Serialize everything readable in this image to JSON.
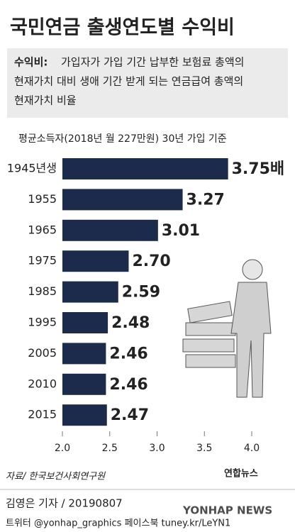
{
  "chart_data": {
    "type": "bar",
    "orientation": "horizontal",
    "title": "국민연금 출생연도별 수익비",
    "definition_label": "수익비:",
    "definition_lines": [
      "가입자가 가입 기간 납부한 보험료 총액의",
      "현재가치 대비 생애 기간 받게 되는 연금급여 총액의",
      "현재가치 비율"
    ],
    "subtitle": "평균소득자(2018년 월 227만원) 30년 가입 기준",
    "categories": [
      "1945년생",
      "1955",
      "1965",
      "1975",
      "1985",
      "1995",
      "2005",
      "2010",
      "2015"
    ],
    "values": [
      3.75,
      3.27,
      3.01,
      2.7,
      2.59,
      2.48,
      2.46,
      2.46,
      2.47
    ],
    "value_labels": [
      "3.75배",
      "3.27",
      "3.01",
      "2.70",
      "2.59",
      "2.48",
      "2.46",
      "2.46",
      "2.47"
    ],
    "color": "#1c2b4c",
    "xlim": [
      2.0,
      4.0
    ],
    "xticks": [
      {
        "value": 2.0,
        "label": "2.0"
      },
      {
        "value": 2.5,
        "label": "2.5"
      },
      {
        "value": 3.0,
        "label": "3.0"
      },
      {
        "value": 3.5,
        "label": "3.5"
      },
      {
        "value": 4.0,
        "label": "4.0"
      }
    ],
    "source": "자료/ 한국보건사회연구원",
    "credit": "김영은 기자 / 20190807",
    "social": "트위터 @yonhap_graphics  페이스북 tuney.kr/LeYN1",
    "logo": "연합뉴스",
    "watermark": "YONHAP NEWS"
  }
}
